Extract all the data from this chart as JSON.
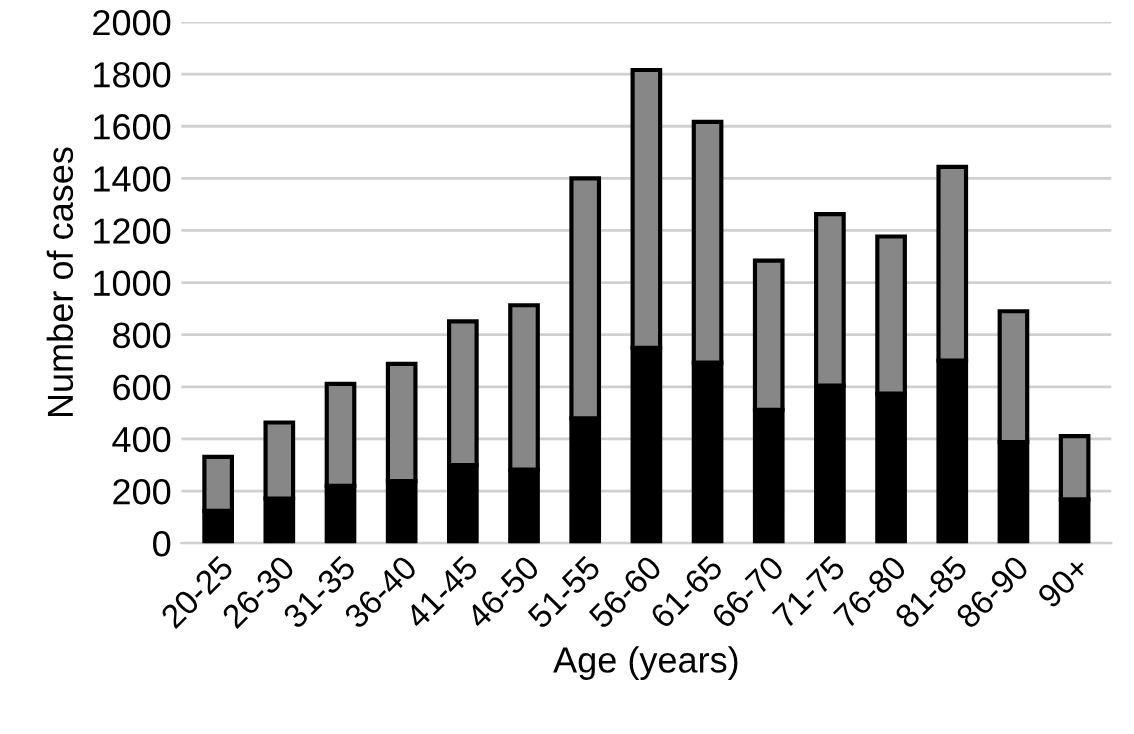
{
  "chart_data": {
    "type": "bar",
    "stacked": true,
    "xlabel": "Age (years)",
    "ylabel": "Number of cases",
    "categories": [
      "20-25",
      "26-30",
      "31-35",
      "36-40",
      "41-45",
      "46-50",
      "51-55",
      "56-60",
      "61-65",
      "66-70",
      "71-75",
      "76-80",
      "81-85",
      "86-90",
      "90+"
    ],
    "series": [
      {
        "color": "#000000",
        "values": [
          124,
          171,
          220,
          238,
          300,
          282,
          479,
          750,
          693,
          512,
          605,
          574,
          701,
          388,
          168
        ]
      },
      {
        "color": "#878787",
        "values": [
          207,
          292,
          391,
          450,
          551,
          631,
          921,
          1066,
          924,
          572,
          658,
          603,
          743,
          502,
          243
        ]
      }
    ],
    "ylim": [
      0,
      2000
    ],
    "yticks": [
      0,
      200,
      400,
      600,
      800,
      1000,
      1200,
      1400,
      1600,
      1800,
      2000
    ],
    "grid": "y",
    "legend": false
  }
}
